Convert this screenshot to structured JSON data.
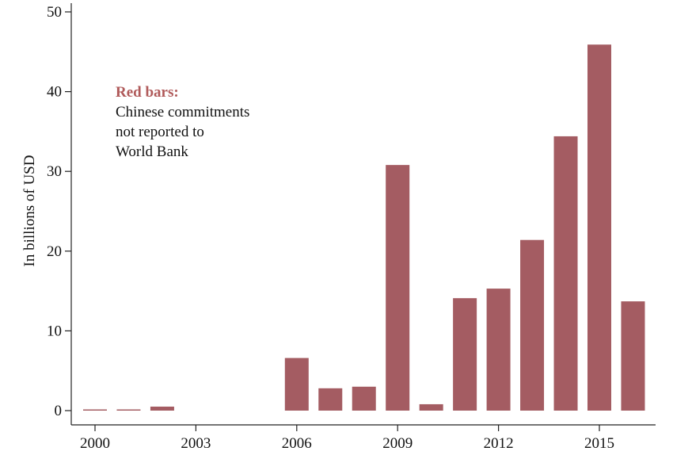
{
  "chart_data": {
    "type": "bar",
    "title": "",
    "xlabel": "",
    "ylabel": "In billions of USD",
    "ylim": [
      0,
      50
    ],
    "xlim": [
      1999.5,
      2016.7
    ],
    "yticks": [
      0,
      10,
      20,
      30,
      40,
      50
    ],
    "xticks": [
      2000,
      2003,
      2006,
      2009,
      2012,
      2015
    ],
    "ytick_labels": [
      "0",
      "10",
      "20",
      "30",
      "40",
      "50"
    ],
    "xtick_labels": [
      "2000",
      "2003",
      "2006",
      "2009",
      "2012",
      "2015"
    ],
    "grid": false,
    "bar_color": "#a45c62",
    "x": [
      2000,
      2001,
      2002,
      2003,
      2004,
      2005,
      2006,
      2007,
      2008,
      2009,
      2010,
      2011,
      2012,
      2013,
      2014,
      2015,
      2016
    ],
    "values": [
      0.15,
      0.15,
      0.5,
      0,
      0,
      0,
      6.6,
      2.8,
      3.0,
      30.8,
      0.8,
      14.1,
      15.3,
      21.4,
      34.4,
      45.9,
      13.7
    ],
    "annotation": {
      "title": "Red bars:",
      "title_color": "#b05a5a",
      "lines": [
        "Chinese commitments",
        "not reported to",
        "World Bank"
      ]
    }
  }
}
